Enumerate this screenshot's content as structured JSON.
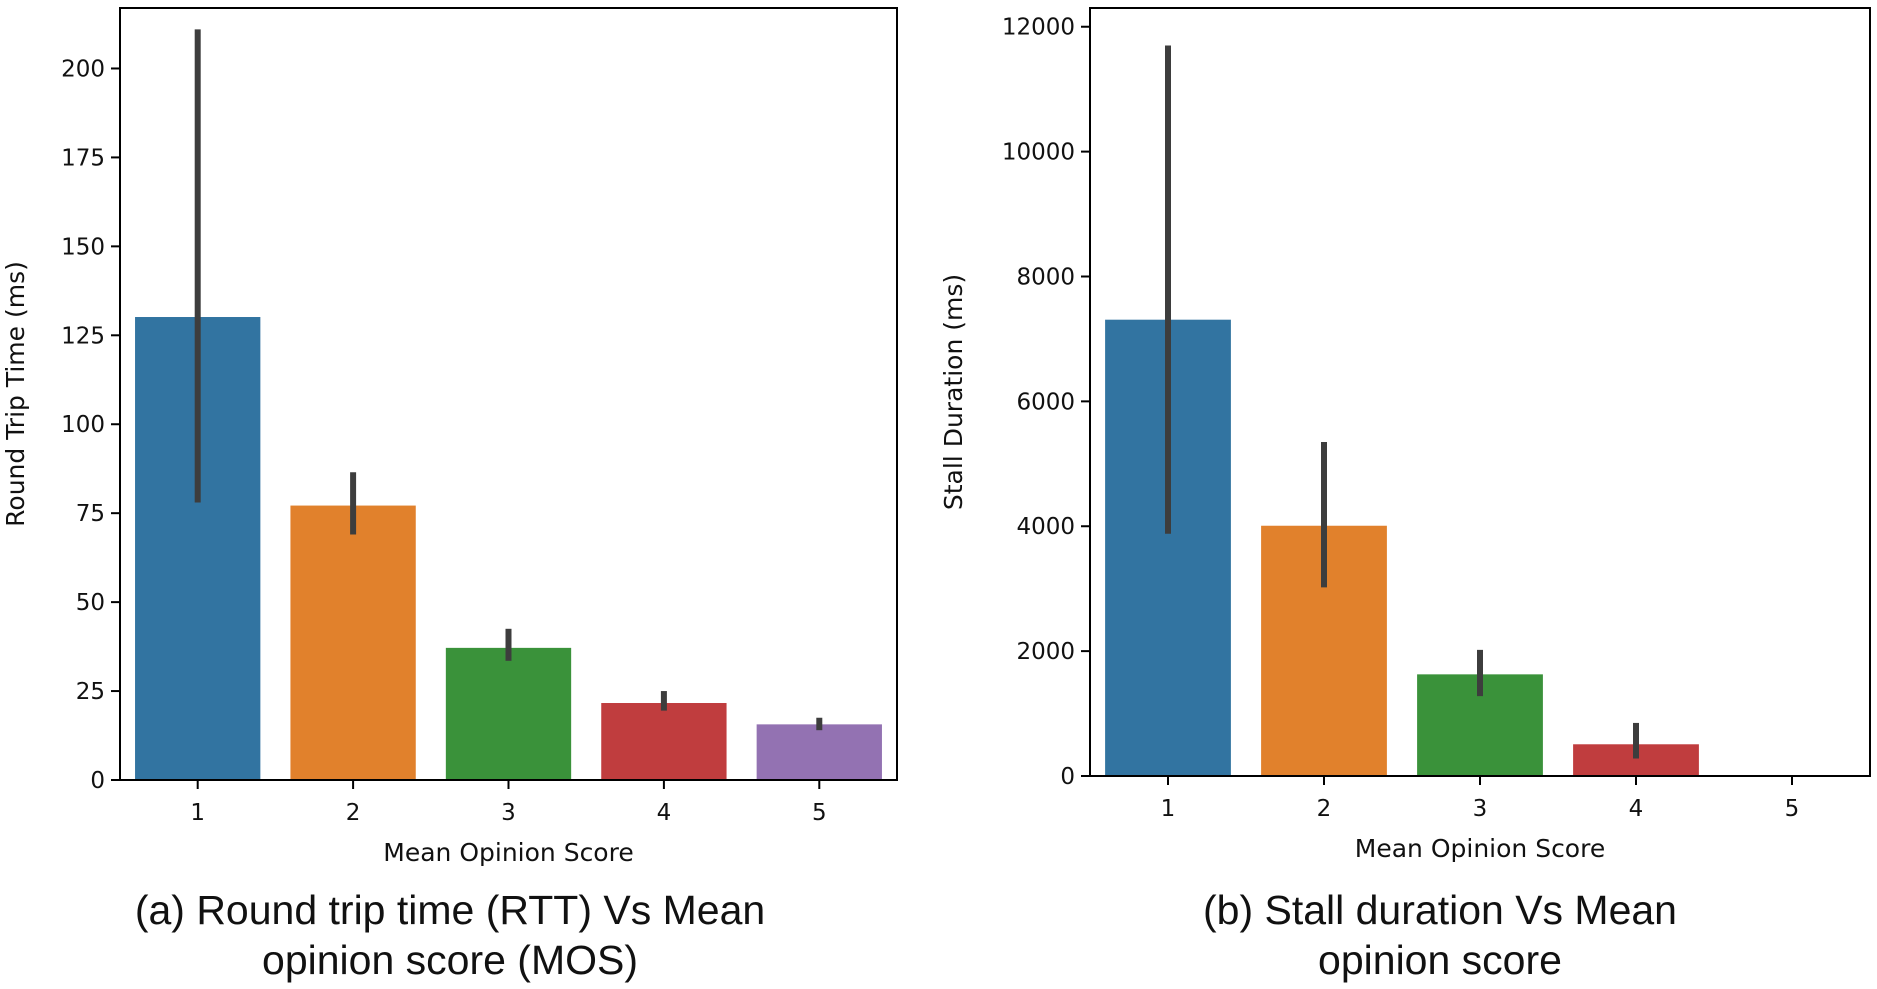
{
  "chart_data": [
    {
      "type": "bar",
      "title": "(a) Round trip time (RTT) Vs Mean opinion score (MOS)",
      "caption_lines": [
        "(a) Round trip time (RTT) Vs Mean",
        "opinion score (MOS)"
      ],
      "xlabel": "Mean Opinion Score",
      "ylabel": "Round Trip Time (ms)",
      "categories": [
        "1",
        "2",
        "3",
        "4",
        "5"
      ],
      "values": [
        130,
        77,
        37,
        21.5,
        15.5
      ],
      "error_low": [
        78,
        69,
        33.5,
        19.5,
        14
      ],
      "error_high": [
        211,
        86.5,
        42.5,
        25,
        17.5
      ],
      "colors": [
        "#3274a1",
        "#e1812c",
        "#3a923a",
        "#c03d3e",
        "#9372b2"
      ],
      "ylim": [
        0,
        217
      ],
      "yticks": [
        0,
        25,
        50,
        75,
        100,
        125,
        150,
        175,
        200
      ],
      "ytick_labels": [
        "0",
        "25",
        "50",
        "75",
        "100",
        "125",
        "150",
        "175",
        "200"
      ],
      "grid": false
    },
    {
      "type": "bar",
      "title": "(b) Stall duration Vs Mean opinion score",
      "caption_lines": [
        "(b) Stall duration Vs Mean",
        "opinion score"
      ],
      "xlabel": "Mean Opinion Score",
      "ylabel": "Stall Duration (ms)",
      "categories": [
        "1",
        "2",
        "3",
        "4",
        "5"
      ],
      "values": [
        7300,
        4000,
        1620,
        500,
        0
      ],
      "error_low": [
        3880,
        3020,
        1280,
        280,
        0
      ],
      "error_high": [
        11700,
        5350,
        2020,
        850,
        0
      ],
      "colors": [
        "#3274a1",
        "#e1812c",
        "#3a923a",
        "#c03d3e",
        "#9372b2"
      ],
      "ylim": [
        0,
        12300
      ],
      "yticks": [
        0,
        2000,
        4000,
        6000,
        8000,
        10000,
        12000
      ],
      "ytick_labels": [
        "0",
        "2000",
        "4000",
        "6000",
        "8000",
        "10000",
        "12000"
      ],
      "grid": false
    }
  ]
}
